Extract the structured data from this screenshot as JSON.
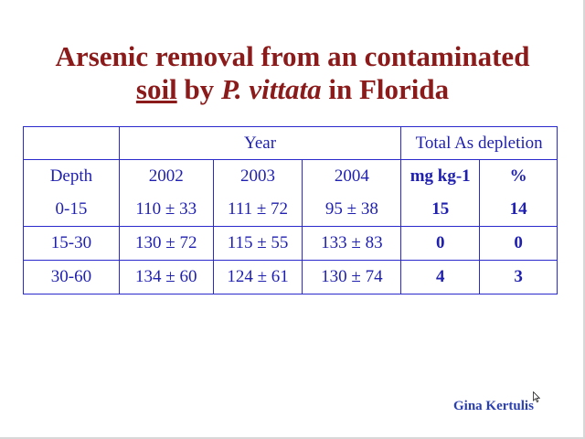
{
  "title": {
    "line1": "Arsenic removal from an contaminated",
    "line2_underlined": "soil",
    "line2_by": " by ",
    "line2_species": "P. vittata",
    "line2_rest": " in Florida"
  },
  "table": {
    "group_year": "Year",
    "group_depletion": "Total As depletion",
    "depth_header": "Depth",
    "col_2002": "2002",
    "col_2003": "2003",
    "col_2004": "2004",
    "col_mg": "mg kg-1",
    "col_pct": "%",
    "rows": [
      {
        "depth": "0-15",
        "y2002": "110 ± 33",
        "y2003": "111 ± 72",
        "y2004": "95 ± 38",
        "mg": "15",
        "pct": "14"
      },
      {
        "depth": "15-30",
        "y2002": "130 ± 72",
        "y2003": "115 ± 55",
        "y2004": "133 ± 83",
        "mg": "0",
        "pct": "0"
      },
      {
        "depth": "30-60",
        "y2002": "134 ± 60",
        "y2003": "124 ± 61",
        "y2004": "130 ± 74",
        "mg": "4",
        "pct": "3"
      }
    ]
  },
  "author": "Gina Kertulis",
  "colors": {
    "title": "#8b1a1a",
    "table_text": "#1f1fb0",
    "table_border": "#2a2acc",
    "author": "#2a3fb0"
  },
  "cursor_icon": "mouse-pointer-icon"
}
